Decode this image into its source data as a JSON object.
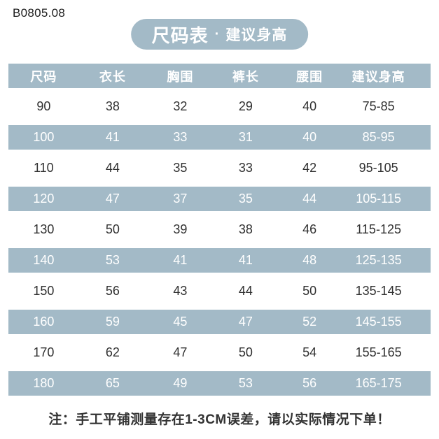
{
  "page": {
    "product_code": "B0805.08",
    "title": {
      "primary": "尺码表",
      "separator": "·",
      "secondary": "建议身高"
    },
    "note": "注：手工平铺测量存在1-3CM误差，请以实际情况下单！",
    "colors": {
      "accent_blue": "#a3bac7",
      "row_text_dark": "#303030",
      "row_text_light": "#ffffff",
      "background": "#ffffff"
    }
  },
  "chart_data": {
    "type": "table",
    "title": "尺码表 · 建议身高",
    "columns": [
      "尺码",
      "衣长",
      "胸围",
      "裤长",
      "腰围",
      "建议身高"
    ],
    "rows": [
      [
        "90",
        "38",
        "32",
        "29",
        "40",
        "75-85"
      ],
      [
        "100",
        "41",
        "33",
        "31",
        "40",
        "85-95"
      ],
      [
        "110",
        "44",
        "35",
        "33",
        "42",
        "95-105"
      ],
      [
        "120",
        "47",
        "37",
        "35",
        "44",
        "105-115"
      ],
      [
        "130",
        "50",
        "39",
        "38",
        "46",
        "115-125"
      ],
      [
        "140",
        "53",
        "41",
        "41",
        "48",
        "125-135"
      ],
      [
        "150",
        "56",
        "43",
        "44",
        "50",
        "135-145"
      ],
      [
        "160",
        "59",
        "45",
        "47",
        "52",
        "145-155"
      ],
      [
        "170",
        "62",
        "47",
        "50",
        "54",
        "155-165"
      ],
      [
        "180",
        "65",
        "49",
        "53",
        "56",
        "165-175"
      ]
    ],
    "layout": {
      "stripe_pattern": "rows alternate white and accent-blue, starting white at size 90",
      "header_style": "accent-blue background, white bold text"
    }
  }
}
